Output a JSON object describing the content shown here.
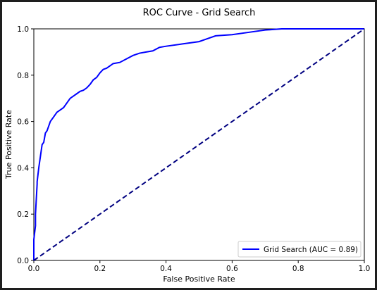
{
  "chart_data": {
    "type": "line",
    "title": "ROC Curve - Grid Search",
    "xlabel": "False Positive Rate",
    "ylabel": "True Positive Rate",
    "xlim": [
      0.0,
      1.0
    ],
    "ylim": [
      0.0,
      1.0
    ],
    "xticks": [
      0.0,
      0.2,
      0.4,
      0.6,
      0.8,
      1.0
    ],
    "yticks": [
      0.0,
      0.2,
      0.4,
      0.6,
      0.8,
      1.0
    ],
    "xtick_labels": [
      "0.0",
      "0.2",
      "0.4",
      "0.6",
      "0.8",
      "1.0"
    ],
    "ytick_labels": [
      "0.0",
      "0.2",
      "0.4",
      "0.6",
      "0.8",
      "1.0"
    ],
    "grid": false,
    "legend_position": "lower-right",
    "series": [
      {
        "name": "Grid Search (AUC = 0.89)",
        "color": "#0000ff",
        "style": "solid",
        "x": [
          0.0,
          0.0,
          0.005,
          0.005,
          0.01,
          0.01,
          0.015,
          0.02,
          0.025,
          0.03,
          0.035,
          0.04,
          0.045,
          0.05,
          0.06,
          0.07,
          0.08,
          0.09,
          0.1,
          0.11,
          0.12,
          0.13,
          0.14,
          0.15,
          0.16,
          0.17,
          0.18,
          0.19,
          0.2,
          0.21,
          0.22,
          0.23,
          0.24,
          0.26,
          0.28,
          0.3,
          0.32,
          0.34,
          0.36,
          0.38,
          0.4,
          0.45,
          0.5,
          0.52,
          0.55,
          0.6,
          0.65,
          0.7,
          0.75,
          0.8,
          0.85,
          0.9,
          0.95,
          1.0
        ],
        "y": [
          0.0,
          0.09,
          0.15,
          0.2,
          0.33,
          0.34,
          0.4,
          0.45,
          0.5,
          0.51,
          0.55,
          0.56,
          0.58,
          0.6,
          0.62,
          0.64,
          0.65,
          0.66,
          0.68,
          0.7,
          0.71,
          0.72,
          0.73,
          0.735,
          0.745,
          0.76,
          0.78,
          0.79,
          0.81,
          0.825,
          0.83,
          0.84,
          0.85,
          0.855,
          0.87,
          0.885,
          0.895,
          0.9,
          0.905,
          0.92,
          0.925,
          0.935,
          0.945,
          0.955,
          0.97,
          0.975,
          0.985,
          0.995,
          1.0,
          1.0,
          1.0,
          1.0,
          1.0,
          1.0
        ]
      },
      {
        "color": "#000080",
        "style": "dashed",
        "x": [
          0.0,
          1.0
        ],
        "y": [
          0.0,
          1.0
        ]
      }
    ]
  }
}
